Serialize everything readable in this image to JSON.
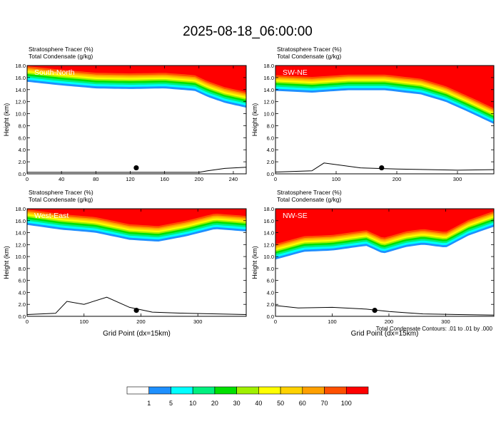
{
  "figure_title": "2025-08-18_06:00:00",
  "chart_data": [
    {
      "type": "heatmap",
      "panel_label": "South-North",
      "title_lines": [
        "Stratosphere Tracer   (%)",
        "Total Condensate   (g/kg)"
      ],
      "ylabel": "Height (km)",
      "xlabel": "",
      "xlim": [
        0,
        255
      ],
      "ylim": [
        0,
        18
      ],
      "x_ticks": [
        0,
        40,
        80,
        120,
        160,
        200,
        240
      ],
      "y_ticks": [
        0,
        2,
        4,
        6,
        8,
        10,
        12,
        14,
        16,
        18
      ],
      "marker_x": 127,
      "tracer_base_km": [
        [
          0,
          15.3
        ],
        [
          40,
          14.7
        ],
        [
          80,
          14.2
        ],
        [
          120,
          14.1
        ],
        [
          160,
          14.2
        ],
        [
          195,
          13.8
        ],
        [
          210,
          12.8
        ],
        [
          230,
          11.8
        ],
        [
          255,
          11.0
        ]
      ],
      "terrain_km": [
        [
          0,
          0.25
        ],
        [
          200,
          0.25
        ],
        [
          210,
          0.5
        ],
        [
          230,
          0.9
        ],
        [
          255,
          1.1
        ]
      ]
    },
    {
      "type": "heatmap",
      "panel_label": "SW-NE",
      "title_lines": [
        "Stratosphere Tracer   (%)",
        "Total Condensate   (g/kg)"
      ],
      "ylabel": "Height (km)",
      "xlabel": "",
      "xlim": [
        0,
        360
      ],
      "ylim": [
        0,
        18
      ],
      "x_ticks": [
        0,
        100,
        200,
        300
      ],
      "y_ticks": [
        0,
        2,
        4,
        6,
        8,
        10,
        12,
        14,
        16,
        18
      ],
      "marker_x": 175,
      "tracer_base_km": [
        [
          0,
          13.8
        ],
        [
          60,
          13.5
        ],
        [
          120,
          13.9
        ],
        [
          180,
          13.9
        ],
        [
          240,
          13.2
        ],
        [
          280,
          12.0
        ],
        [
          320,
          10.2
        ],
        [
          360,
          8.3
        ]
      ],
      "terrain_km": [
        [
          0,
          0.3
        ],
        [
          60,
          0.5
        ],
        [
          80,
          1.8
        ],
        [
          140,
          1.0
        ],
        [
          200,
          0.8
        ],
        [
          300,
          0.6
        ],
        [
          360,
          0.7
        ]
      ]
    },
    {
      "type": "heatmap",
      "panel_label": "West-East",
      "title_lines": [
        "Stratosphere Tracer   (%)",
        "Total Condensate   (g/kg)"
      ],
      "ylabel": "Height (km)",
      "xlabel": "Grid Point (dx=15km)",
      "xlim": [
        0,
        385
      ],
      "ylim": [
        0,
        18
      ],
      "x_ticks": [
        0,
        100,
        200,
        300
      ],
      "y_ticks": [
        0,
        2,
        4,
        6,
        8,
        10,
        12,
        14,
        16,
        18
      ],
      "marker_x": 192,
      "tracer_base_km": [
        [
          0,
          15.3
        ],
        [
          60,
          14.5
        ],
        [
          120,
          14.0
        ],
        [
          180,
          12.8
        ],
        [
          230,
          12.5
        ],
        [
          280,
          13.4
        ],
        [
          330,
          14.6
        ],
        [
          385,
          14.2
        ]
      ],
      "terrain_km": [
        [
          0,
          0.3
        ],
        [
          50,
          0.5
        ],
        [
          70,
          2.5
        ],
        [
          100,
          2.0
        ],
        [
          140,
          3.2
        ],
        [
          180,
          1.5
        ],
        [
          220,
          0.7
        ],
        [
          280,
          0.5
        ],
        [
          385,
          0.3
        ]
      ]
    },
    {
      "type": "heatmap",
      "panel_label": "NW-SE",
      "title_lines": [
        "Stratosphere Tracer   (%)",
        "Total Condensate   (g/kg)"
      ],
      "ylabel": "Height (km)",
      "xlabel": "Grid Point (dx=15km)",
      "xlim": [
        0,
        385
      ],
      "ylim": [
        0,
        18
      ],
      "x_ticks": [
        0,
        100,
        200,
        300
      ],
      "y_ticks": [
        0,
        2,
        4,
        6,
        8,
        10,
        12,
        14,
        16,
        18
      ],
      "marker_x": 175,
      "tracer_base_km": [
        [
          0,
          9.5
        ],
        [
          50,
          10.8
        ],
        [
          100,
          11.0
        ],
        [
          160,
          11.8
        ],
        [
          190,
          10.5
        ],
        [
          230,
          11.6
        ],
        [
          260,
          12.0
        ],
        [
          300,
          11.5
        ],
        [
          340,
          13.5
        ],
        [
          385,
          15.0
        ]
      ],
      "terrain_km": [
        [
          0,
          1.8
        ],
        [
          40,
          1.4
        ],
        [
          100,
          1.5
        ],
        [
          160,
          1.2
        ],
        [
          200,
          0.8
        ],
        [
          260,
          0.4
        ],
        [
          385,
          0.2
        ]
      ]
    }
  ],
  "contour_note": "Total Condensate Contours: .01 to .01 by .000",
  "colorbar": {
    "labels": [
      "1",
      "5",
      "10",
      "20",
      "30",
      "40",
      "50",
      "60",
      "70",
      "100"
    ],
    "colors": [
      "#ffffff",
      "#1e90ff",
      "#00ffff",
      "#00f07f",
      "#00e000",
      "#a0f000",
      "#ffff00",
      "#ffd200",
      "#ffa000",
      "#ff5000",
      "#ff0000"
    ]
  }
}
